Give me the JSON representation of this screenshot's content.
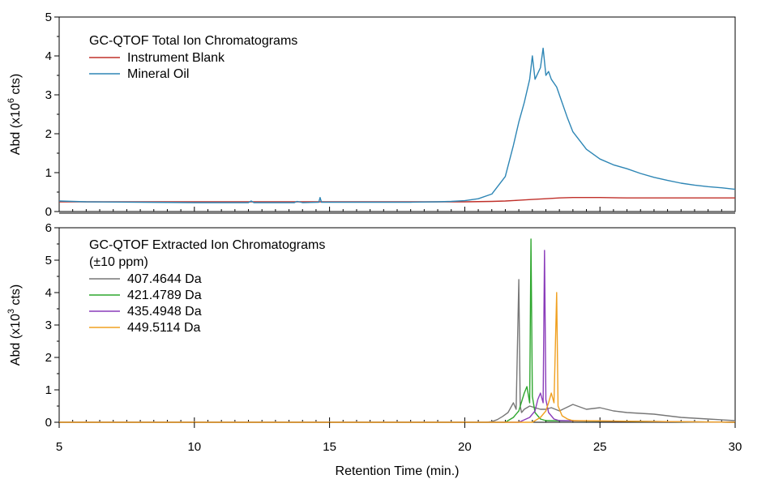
{
  "xaxis": {
    "label": "Retention Time (min.)",
    "range": [
      5,
      30
    ],
    "ticks": [
      5,
      10,
      15,
      20,
      25,
      30
    ]
  },
  "chart_data": [
    {
      "type": "line",
      "legend_title": "GC-QTOF Total Ion Chromatograms",
      "legend_subtitle": "",
      "ylabel_main": "Abd (x10",
      "ylabel_exp": "6",
      "ylabel_unit": " cts)",
      "ylim": [
        0,
        5
      ],
      "yticks": [
        0,
        1,
        2,
        3,
        4,
        5
      ],
      "series": [
        {
          "name": "Instrument Blank",
          "color": "#c0302a",
          "x": [
            5,
            10,
            15,
            19,
            20,
            21,
            21.5,
            22,
            22.5,
            23,
            23.5,
            24,
            24.5,
            25,
            26,
            27,
            28,
            29,
            30
          ],
          "y": [
            0.25,
            0.25,
            0.25,
            0.25,
            0.25,
            0.26,
            0.27,
            0.29,
            0.31,
            0.33,
            0.35,
            0.36,
            0.36,
            0.36,
            0.35,
            0.35,
            0.35,
            0.35,
            0.35
          ]
        },
        {
          "name": "Mineral Oil",
          "color": "#2e86b5",
          "x": [
            5,
            6,
            8,
            10,
            12,
            12.1,
            12.2,
            13,
            13.7,
            13.8,
            14,
            14.6,
            14.65,
            14.7,
            16,
            18,
            19,
            19.5,
            20,
            20.5,
            21,
            21.5,
            21.8,
            22,
            22.2,
            22.4,
            22.5,
            22.6,
            22.8,
            22.9,
            23.0,
            23.1,
            23.2,
            23.4,
            23.6,
            23.8,
            24,
            24.5,
            25,
            25.5,
            26,
            26.5,
            27,
            27.5,
            28,
            28.5,
            29,
            29.5,
            30
          ],
          "y": [
            0.27,
            0.25,
            0.24,
            0.23,
            0.23,
            0.27,
            0.23,
            0.23,
            0.23,
            0.26,
            0.23,
            0.24,
            0.36,
            0.24,
            0.24,
            0.24,
            0.25,
            0.26,
            0.28,
            0.33,
            0.45,
            0.9,
            1.7,
            2.3,
            2.8,
            3.4,
            4.0,
            3.4,
            3.7,
            4.2,
            3.5,
            3.6,
            3.4,
            3.2,
            2.8,
            2.4,
            2.05,
            1.6,
            1.35,
            1.2,
            1.1,
            0.98,
            0.88,
            0.8,
            0.73,
            0.68,
            0.64,
            0.61,
            0.57
          ]
        }
      ]
    },
    {
      "type": "line",
      "legend_title": "GC-QTOF Extracted Ion Chromatograms",
      "legend_subtitle": "(±10 ppm)",
      "ylabel_main": "Abd (x10",
      "ylabel_exp": "3",
      "ylabel_unit": " cts)",
      "ylim": [
        0,
        6
      ],
      "yticks": [
        0,
        1,
        2,
        3,
        4,
        5,
        6
      ],
      "series": [
        {
          "name": "407.4644 Da",
          "color": "#777777",
          "x": [
            5,
            20.8,
            21.0,
            21.2,
            21.4,
            21.6,
            21.8,
            21.9,
            22.0,
            22.05,
            22.1,
            22.2,
            22.4,
            22.6,
            22.8,
            23.0,
            23.2,
            23.5,
            24,
            24.5,
            25,
            25.5,
            26,
            27,
            28,
            29,
            30
          ],
          "y": [
            0,
            0,
            0.02,
            0.08,
            0.18,
            0.3,
            0.6,
            0.4,
            4.4,
            0.5,
            0.3,
            0.4,
            0.5,
            0.45,
            0.4,
            0.4,
            0.45,
            0.35,
            0.55,
            0.4,
            0.45,
            0.35,
            0.3,
            0.25,
            0.15,
            0.1,
            0.05
          ]
        },
        {
          "name": "421.4789 Da",
          "color": "#2fa72f",
          "x": [
            5,
            21.5,
            21.8,
            22.0,
            22.2,
            22.3,
            22.4,
            22.45,
            22.5,
            22.6,
            22.8,
            23.0,
            30
          ],
          "y": [
            0,
            0,
            0.15,
            0.35,
            0.9,
            1.1,
            0.6,
            5.65,
            0.8,
            0.3,
            0.1,
            0.05,
            0
          ]
        },
        {
          "name": "435.4948 Da",
          "color": "#8a3cba",
          "x": [
            5,
            22.0,
            22.4,
            22.6,
            22.7,
            22.8,
            22.9,
            22.95,
            23.0,
            23.1,
            23.3,
            23.5,
            30
          ],
          "y": [
            0,
            0,
            0.15,
            0.35,
            0.7,
            0.9,
            0.6,
            5.3,
            0.7,
            0.3,
            0.1,
            0.05,
            0
          ]
        },
        {
          "name": "449.5114 Da",
          "color": "#f0a020",
          "x": [
            5,
            22.5,
            22.8,
            23.0,
            23.1,
            23.2,
            23.3,
            23.4,
            23.45,
            23.6,
            23.8,
            24.0,
            30
          ],
          "y": [
            0,
            0,
            0.15,
            0.35,
            0.6,
            0.9,
            0.6,
            4.0,
            0.5,
            0.2,
            0.1,
            0.05,
            0
          ]
        }
      ]
    }
  ]
}
